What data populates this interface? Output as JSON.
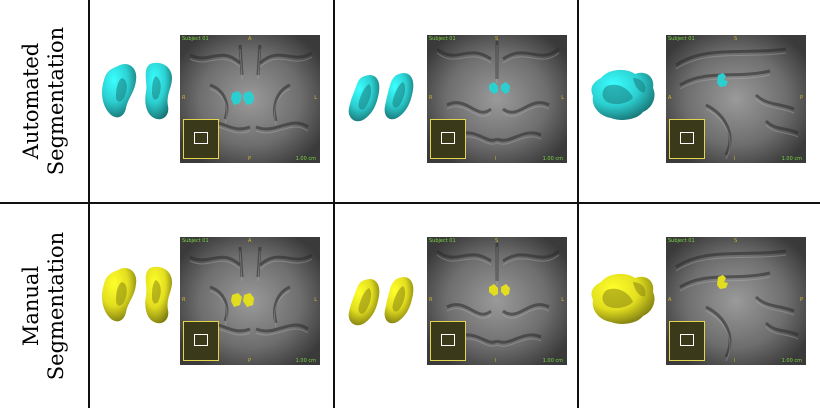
{
  "rows": [
    {
      "label_line1": "Automated",
      "label_line2": "Segmentation",
      "color": "#2ccfd0"
    },
    {
      "label_line1": "Manual",
      "label_line2": "Segmentation",
      "color": "#e2de1f"
    }
  ],
  "views": [
    {
      "name": "axial",
      "header": "Subject 01",
      "top": "A",
      "bottom": "P",
      "left": "R",
      "right": "L",
      "scale": "1.00 cm"
    },
    {
      "name": "coronal",
      "header": "Subject 01",
      "top": "S",
      "bottom": "I",
      "left": "R",
      "right": "L",
      "scale": "1.00 cm"
    },
    {
      "name": "sagittal",
      "header": "Subject 01",
      "top": "S",
      "bottom": "I",
      "left": "A",
      "right": "P",
      "scale": "1.00 cm"
    }
  ],
  "colors": {
    "automated": "#2ccfd0",
    "manual": "#e2de1f",
    "grid": "#111111",
    "overlay_text": "#7bd642",
    "direction_text": "#d4b82e"
  }
}
